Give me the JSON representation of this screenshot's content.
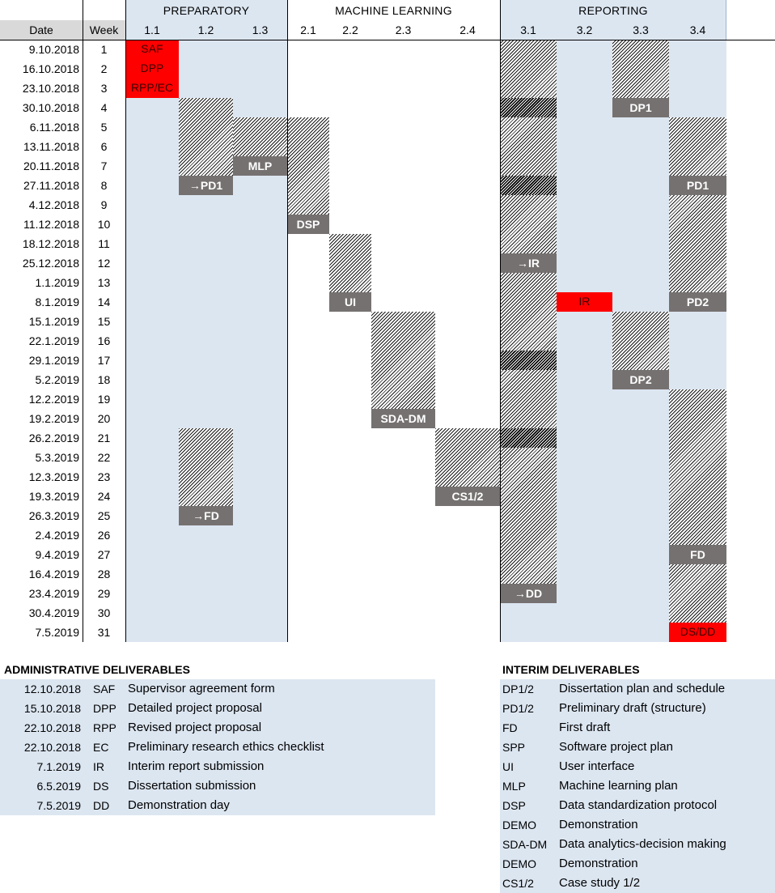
{
  "groups": [
    {
      "label": "PREPARATORY"
    },
    {
      "label": "MACHINE LEARNING"
    },
    {
      "label": "REPORTING"
    }
  ],
  "header": {
    "date": "Date",
    "week": "Week"
  },
  "task_columns": [
    "1.1",
    "1.2",
    "1.3",
    "2.1",
    "2.2",
    "2.3",
    "2.4",
    "3.1",
    "3.2",
    "3.3",
    "3.4"
  ],
  "rows": [
    {
      "date": "9.10.2018",
      "week": "1"
    },
    {
      "date": "16.10.2018",
      "week": "2"
    },
    {
      "date": "23.10.2018",
      "week": "3"
    },
    {
      "date": "30.10.2018",
      "week": "4"
    },
    {
      "date": "6.11.2018",
      "week": "5"
    },
    {
      "date": "13.11.2018",
      "week": "6"
    },
    {
      "date": "20.11.2018",
      "week": "7"
    },
    {
      "date": "27.11.2018",
      "week": "8"
    },
    {
      "date": "4.12.2018",
      "week": "9"
    },
    {
      "date": "11.12.2018",
      "week": "10"
    },
    {
      "date": "18.12.2018",
      "week": "11"
    },
    {
      "date": "25.12.2018",
      "week": "12"
    },
    {
      "date": "1.1.2019",
      "week": "13"
    },
    {
      "date": "8.1.2019",
      "week": "14"
    },
    {
      "date": "15.1.2019",
      "week": "15"
    },
    {
      "date": "22.1.2019",
      "week": "16"
    },
    {
      "date": "29.1.2019",
      "week": "17"
    },
    {
      "date": "5.2.2019",
      "week": "18"
    },
    {
      "date": "12.2.2019",
      "week": "19"
    },
    {
      "date": "19.2.2019",
      "week": "20"
    },
    {
      "date": "26.2.2019",
      "week": "21"
    },
    {
      "date": "5.3.2019",
      "week": "22"
    },
    {
      "date": "12.3.2019",
      "week": "23"
    },
    {
      "date": "19.3.2019",
      "week": "24"
    },
    {
      "date": "26.3.2019",
      "week": "25"
    },
    {
      "date": "2.4.2019",
      "week": "26"
    },
    {
      "date": "9.4.2019",
      "week": "27"
    },
    {
      "date": "16.4.2019",
      "week": "28"
    },
    {
      "date": "23.4.2019",
      "week": "29"
    },
    {
      "date": "30.4.2019",
      "week": "30"
    },
    {
      "date": "7.5.2019",
      "week": "31"
    }
  ],
  "hatched_blocks": [
    {
      "task": "1.2",
      "from_week": 4,
      "to_week": 8
    },
    {
      "task": "1.3",
      "from_week": 5,
      "to_week": 7
    },
    {
      "task": "2.1",
      "from_week": 5,
      "to_week": 10
    },
    {
      "task": "2.2",
      "from_week": 11,
      "to_week": 14
    },
    {
      "task": "2.3",
      "from_week": 15,
      "to_week": 20
    },
    {
      "task": "1.2",
      "from_week": 21,
      "to_week": 25
    },
    {
      "task": "2.4",
      "from_week": 21,
      "to_week": 24
    },
    {
      "task": "3.1",
      "from_week": 1,
      "to_week": 29
    },
    {
      "task": "3.3",
      "from_week": 1,
      "to_week": 4
    },
    {
      "task": "3.3",
      "from_week": 15,
      "to_week": 18
    },
    {
      "task": "3.4",
      "from_week": 5,
      "to_week": 14
    },
    {
      "task": "3.4",
      "from_week": 19,
      "to_week": 31
    }
  ],
  "dense_blocks": [
    {
      "task": "3.1",
      "week": 4
    },
    {
      "task": "3.1",
      "week": 8
    },
    {
      "task": "3.1",
      "week": 17
    },
    {
      "task": "3.1",
      "week": 21
    }
  ],
  "milestones": [
    {
      "task": "1.1",
      "week": 1,
      "label": "SAF",
      "style": "red"
    },
    {
      "task": "1.1",
      "week": 2,
      "label": "DPP",
      "style": "red"
    },
    {
      "task": "1.1",
      "week": 3,
      "label": "RPP/EC",
      "style": "red"
    },
    {
      "task": "3.3",
      "week": 4,
      "label": "DP1",
      "style": "gray"
    },
    {
      "task": "1.3",
      "week": 7,
      "label": "MLP",
      "style": "gray"
    },
    {
      "task": "1.2",
      "week": 8,
      "label": "→PD1",
      "style": "gray"
    },
    {
      "task": "3.4",
      "week": 8,
      "label": "PD1",
      "style": "gray"
    },
    {
      "task": "2.1",
      "week": 10,
      "label": "DSP",
      "style": "gray"
    },
    {
      "task": "3.1",
      "week": 12,
      "label": "→IR",
      "style": "gray"
    },
    {
      "task": "2.2",
      "week": 14,
      "label": "UI",
      "style": "gray"
    },
    {
      "task": "3.2",
      "week": 14,
      "label": "IR",
      "style": "red"
    },
    {
      "task": "3.4",
      "week": 14,
      "label": "PD2",
      "style": "gray"
    },
    {
      "task": "3.3",
      "week": 18,
      "label": "DP2",
      "style": "gray"
    },
    {
      "task": "2.3",
      "week": 20,
      "label": "SDA-DM",
      "style": "gray"
    },
    {
      "task": "2.4",
      "week": 24,
      "label": "CS1/2",
      "style": "gray"
    },
    {
      "task": "1.2",
      "week": 25,
      "label": "→FD",
      "style": "gray"
    },
    {
      "task": "3.4",
      "week": 27,
      "label": "FD",
      "style": "gray"
    },
    {
      "task": "3.1",
      "week": 29,
      "label": "→DD",
      "style": "gray"
    },
    {
      "task": "3.4",
      "week": 31,
      "label": "DS/DD",
      "style": "red"
    }
  ],
  "admin": {
    "title": "ADMINISTRATIVE DELIVERABLES",
    "items": [
      {
        "date": "12.10.2018",
        "code": "SAF",
        "desc": "Supervisor agreement form"
      },
      {
        "date": "15.10.2018",
        "code": "DPP",
        "desc": "Detailed project proposal"
      },
      {
        "date": "22.10.2018",
        "code": "RPP",
        "desc": "Revised project proposal"
      },
      {
        "date": "22.10.2018",
        "code": "EC",
        "desc": "Preliminary research ethics checklist"
      },
      {
        "date": "7.1.2019",
        "code": "IR",
        "desc": "Interim report submission"
      },
      {
        "date": "6.5.2019",
        "code": "DS",
        "desc": "Dissertation submission"
      },
      {
        "date": "7.5.2019",
        "code": "DD",
        "desc": "Demonstration day"
      }
    ]
  },
  "interim": {
    "title": "INTERIM DELIVERABLES",
    "items": [
      {
        "code": "DP1/2",
        "desc": "Dissertation plan and schedule"
      },
      {
        "code": "PD1/2",
        "desc": "Preliminary draft (structure)"
      },
      {
        "code": "FD",
        "desc": "First draft"
      },
      {
        "code": "SPP",
        "desc": "Software project plan"
      },
      {
        "code": "UI",
        "desc": "User interface"
      },
      {
        "code": "MLP",
        "desc": "Machine learning plan"
      },
      {
        "code": "DSP",
        "desc": "Data standardization protocol"
      },
      {
        "code": "DEMO",
        "desc": "Demonstration"
      },
      {
        "code": "SDA-DM",
        "desc": "Data analytics-decision making"
      },
      {
        "code": "DEMO",
        "desc": "Demonstration"
      },
      {
        "code": "CS1/2",
        "desc": "Case study 1/2"
      }
    ]
  }
}
